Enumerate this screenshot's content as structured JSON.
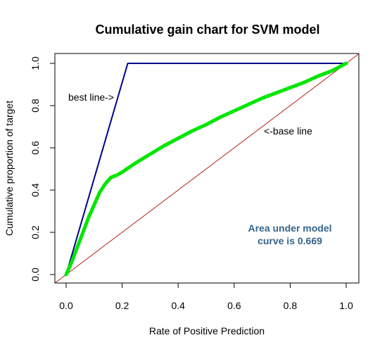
{
  "chart_data": {
    "type": "line",
    "title": "Cumulative gain chart for SVM model",
    "xlabel": "Rate of Positive Prediction",
    "ylabel": "Cumulative proportion of target",
    "xlim": [
      0,
      1
    ],
    "ylim": [
      0,
      1
    ],
    "x_ticks": [
      "0.0",
      "0.2",
      "0.4",
      "0.6",
      "0.8",
      "1.0"
    ],
    "y_ticks": [
      "0.0",
      "0.2",
      "0.4",
      "0.6",
      "0.8",
      "1.0"
    ],
    "grid": false,
    "series": [
      {
        "color": "#00008b",
        "x": [
          0,
          0.22,
          1.0
        ],
        "y": [
          0,
          1.0,
          1.0
        ]
      },
      {
        "color": "#b22222",
        "x": [
          0,
          1.0
        ],
        "y": [
          0,
          1.0
        ]
      },
      {
        "color": "#00e600",
        "x": [
          0,
          0.02,
          0.04,
          0.06,
          0.08,
          0.1,
          0.12,
          0.14,
          0.16,
          0.18,
          0.2,
          0.25,
          0.3,
          0.35,
          0.4,
          0.45,
          0.5,
          0.55,
          0.6,
          0.65,
          0.7,
          0.75,
          0.8,
          0.85,
          0.9,
          0.95,
          1.0
        ],
        "y": [
          0,
          0.06,
          0.13,
          0.2,
          0.27,
          0.33,
          0.39,
          0.43,
          0.46,
          0.47,
          0.485,
          0.53,
          0.57,
          0.61,
          0.645,
          0.68,
          0.71,
          0.745,
          0.775,
          0.805,
          0.835,
          0.86,
          0.885,
          0.91,
          0.94,
          0.965,
          1.0
        ]
      }
    ],
    "annotations": {
      "best_line": "best line->",
      "base_line": "<-base line",
      "auc_line1": "Area under model",
      "auc_line2": "curve is 0.669"
    },
    "auc_color": "#36648b"
  }
}
